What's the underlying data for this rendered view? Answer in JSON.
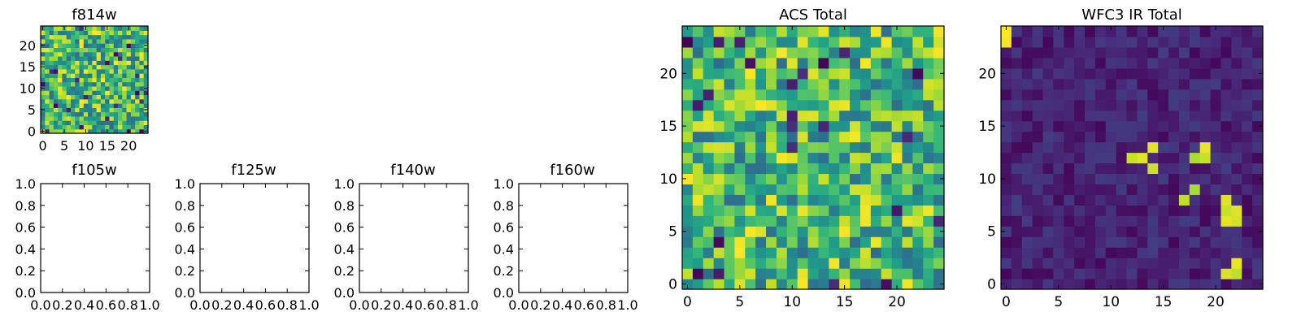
{
  "chart_data": [
    {
      "type": "heatmap",
      "title": "f814w",
      "x_ticks": [
        "0",
        "5",
        "10",
        "15",
        "20"
      ],
      "y_ticks": [
        "0",
        "5",
        "10",
        "15",
        "20"
      ],
      "xlim": [
        -0.5,
        24.5
      ],
      "ylim": [
        -0.5,
        24.5
      ],
      "grid_size": [
        25,
        25
      ],
      "colormap": "viridis",
      "pattern": "noise"
    },
    {
      "type": "empty",
      "title": "f105w",
      "x_ticks": [
        "0.0",
        "0.2",
        "0.4",
        "0.6",
        "0.8",
        "1.0"
      ],
      "y_ticks": [
        "0.0",
        "0.2",
        "0.4",
        "0.6",
        "0.8",
        "1.0"
      ],
      "xlim": [
        0,
        1
      ],
      "ylim": [
        0,
        1
      ]
    },
    {
      "type": "empty",
      "title": "f125w",
      "x_ticks": [
        "0.0",
        "0.2",
        "0.4",
        "0.6",
        "0.8",
        "1.0"
      ],
      "y_ticks": [
        "0.0",
        "0.2",
        "0.4",
        "0.6",
        "0.8",
        "1.0"
      ],
      "xlim": [
        0,
        1
      ],
      "ylim": [
        0,
        1
      ]
    },
    {
      "type": "empty",
      "title": "f140w",
      "x_ticks": [
        "0.0",
        "0.2",
        "0.4",
        "0.6",
        "0.8",
        "1.0"
      ],
      "y_ticks": [
        "0.0",
        "0.2",
        "0.4",
        "0.6",
        "0.8",
        "1.0"
      ],
      "xlim": [
        0,
        1
      ],
      "ylim": [
        0,
        1
      ]
    },
    {
      "type": "empty",
      "title": "f160w",
      "x_ticks": [
        "0.0",
        "0.2",
        "0.4",
        "0.6",
        "0.8",
        "1.0"
      ],
      "y_ticks": [
        "0.0",
        "0.2",
        "0.4",
        "0.6",
        "0.8",
        "1.0"
      ],
      "xlim": [
        0,
        1
      ],
      "ylim": [
        0,
        1
      ]
    },
    {
      "type": "heatmap",
      "title": "ACS Total",
      "x_ticks": [
        "0",
        "5",
        "10",
        "15",
        "20"
      ],
      "y_ticks": [
        "0",
        "5",
        "10",
        "15",
        "20"
      ],
      "xlim": [
        -0.5,
        24.5
      ],
      "ylim": [
        -0.5,
        24.5
      ],
      "grid_size": [
        25,
        25
      ],
      "colormap": "viridis",
      "pattern": "noise"
    },
    {
      "type": "heatmap",
      "title": "WFC3 IR Total",
      "x_ticks": [
        "0",
        "5",
        "10",
        "15",
        "20"
      ],
      "y_ticks": [
        "0",
        "5",
        "10",
        "15",
        "20"
      ],
      "xlim": [
        -0.5,
        24.5
      ],
      "ylim": [
        -0.5,
        24.5
      ],
      "grid_size": [
        25,
        25
      ],
      "colormap": "viridis",
      "pattern": "sparse",
      "bright_pixels": [
        [
          0,
          24
        ],
        [
          0,
          23
        ],
        [
          12,
          12
        ],
        [
          13,
          12
        ],
        [
          14,
          13
        ],
        [
          14,
          11
        ],
        [
          18,
          12
        ],
        [
          19,
          12
        ],
        [
          19,
          13
        ],
        [
          17,
          8
        ],
        [
          18,
          9
        ],
        [
          21,
          6
        ],
        [
          21,
          7
        ],
        [
          22,
          6
        ],
        [
          22,
          7
        ],
        [
          21,
          8
        ],
        [
          22,
          2
        ],
        [
          22,
          1
        ],
        [
          21,
          1
        ]
      ]
    }
  ],
  "colors": {
    "axis": "#000000",
    "background": "#ffffff"
  }
}
